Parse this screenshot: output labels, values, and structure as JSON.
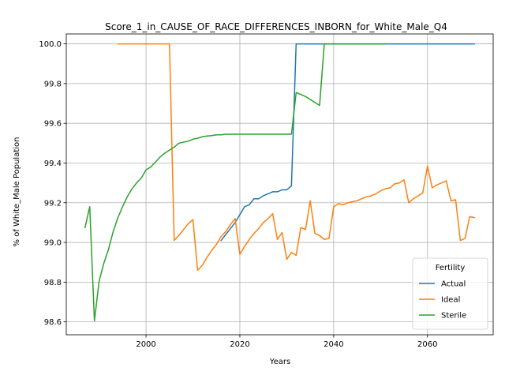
{
  "chart_data": {
    "type": "line",
    "title": "Score_1_in_CAUSE_OF_RACE_DIFFERENCES_INBORN_for_White_Male_Q4",
    "xlabel": "Years",
    "ylabel": "% of White_Male Population",
    "xlim": [
      1983,
      2074
    ],
    "ylim": [
      98.535,
      100.05
    ],
    "xticks": [
      2000,
      2020,
      2040,
      2060
    ],
    "yticks": [
      98.6,
      98.8,
      99.0,
      99.2,
      99.4,
      99.6,
      99.8,
      100.0
    ],
    "ytick_labels": [
      "98.6",
      "98.8",
      "99.0",
      "99.2",
      "99.4",
      "99.6",
      "99.8",
      "100.0"
    ],
    "grid": true,
    "legend": {
      "title": "Fertility",
      "position": "lower-right"
    },
    "series": [
      {
        "name": "Actual",
        "color": "#1f77b4",
        "x": [
          2016,
          2017,
          2018,
          2019,
          2020,
          2021,
          2022,
          2023,
          2024,
          2025,
          2026,
          2027,
          2028,
          2029,
          2030,
          2031,
          2032,
          2033,
          2034,
          2035,
          2036,
          2037,
          2038,
          2039,
          2040,
          2045,
          2050,
          2055,
          2060,
          2065,
          2070
        ],
        "y": [
          99.01,
          99.04,
          99.07,
          99.1,
          99.14,
          99.18,
          99.19,
          99.22,
          99.22,
          99.235,
          99.245,
          99.255,
          99.255,
          99.265,
          99.265,
          99.285,
          100.0,
          100.0,
          100.0,
          100.0,
          100.0,
          100.0,
          100.0,
          100.0,
          100.0,
          100.0,
          100.0,
          100.0,
          100.0,
          100.0,
          100.0
        ]
      },
      {
        "name": "Ideal",
        "color": "#ff7f0e",
        "x": [
          1994,
          1995,
          2000,
          2005,
          2006,
          2007,
          2008,
          2009,
          2010,
          2011,
          2012,
          2013,
          2014,
          2015,
          2016,
          2017,
          2018,
          2019,
          2020,
          2021,
          2022,
          2023,
          2024,
          2025,
          2026,
          2027,
          2028,
          2029,
          2030,
          2031,
          2032,
          2033,
          2034,
          2035,
          2036,
          2037,
          2038,
          2039,
          2040,
          2041,
          2042,
          2043,
          2044,
          2045,
          2046,
          2047,
          2048,
          2049,
          2050,
          2051,
          2052,
          2053,
          2054,
          2055,
          2056,
          2057,
          2058,
          2059,
          2060,
          2061,
          2062,
          2063,
          2064,
          2065,
          2066,
          2067,
          2068,
          2069,
          2070
        ],
        "y": [
          100.0,
          100.0,
          100.0,
          100.0,
          99.01,
          99.035,
          99.065,
          99.095,
          99.115,
          98.86,
          98.885,
          98.925,
          98.96,
          98.99,
          99.03,
          99.055,
          99.09,
          99.12,
          98.94,
          98.98,
          99.015,
          99.045,
          99.07,
          99.1,
          99.12,
          99.145,
          99.015,
          99.05,
          98.915,
          98.95,
          98.935,
          99.075,
          99.065,
          99.21,
          99.045,
          99.035,
          99.015,
          99.02,
          99.18,
          99.195,
          99.19,
          99.2,
          99.205,
          99.21,
          99.22,
          99.23,
          99.235,
          99.245,
          99.26,
          99.27,
          99.275,
          99.295,
          99.3,
          99.315,
          99.2,
          99.22,
          99.235,
          99.25,
          99.385,
          99.275,
          99.29,
          99.3,
          99.31,
          99.21,
          99.215,
          99.01,
          99.02,
          99.13,
          99.125
        ]
      },
      {
        "name": "Sterile",
        "color": "#2ca02c",
        "x": [
          1987,
          1988,
          1989,
          1990,
          1991,
          1992,
          1993,
          1994,
          1995,
          1996,
          1997,
          1998,
          1999,
          2000,
          2001,
          2002,
          2003,
          2004,
          2005,
          2006,
          2007,
          2008,
          2009,
          2010,
          2011,
          2012,
          2013,
          2014,
          2015,
          2016,
          2017,
          2018,
          2020,
          2025,
          2030,
          2031,
          2032,
          2033,
          2034,
          2035,
          2036,
          2037,
          2038,
          2040,
          2045,
          2050,
          2051
        ],
        "y": [
          99.075,
          99.18,
          98.605,
          98.805,
          98.895,
          98.965,
          99.055,
          99.125,
          99.18,
          99.23,
          99.27,
          99.3,
          99.325,
          99.365,
          99.38,
          99.405,
          99.43,
          99.45,
          99.465,
          99.48,
          99.5,
          99.505,
          99.51,
          99.52,
          99.525,
          99.532,
          99.536,
          99.538,
          99.542,
          99.542,
          99.545,
          99.545,
          99.545,
          99.545,
          99.545,
          99.545,
          99.755,
          99.745,
          99.735,
          99.72,
          99.705,
          99.69,
          100.0,
          100.0,
          100.0,
          100.0,
          100.0
        ]
      }
    ]
  }
}
